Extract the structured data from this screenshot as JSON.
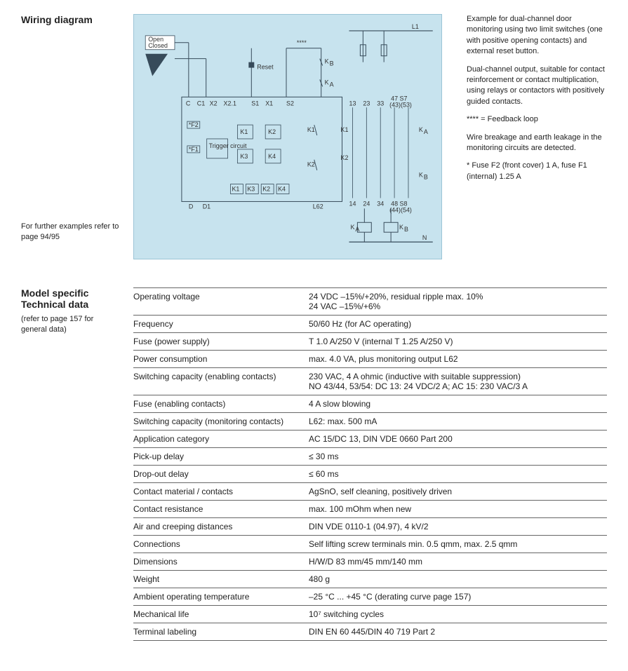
{
  "wiring": {
    "title": "Wiring diagram",
    "further_note": "For further examples refer to page 94/95",
    "diagram": {
      "bg_color": "#c7e3ee",
      "border_color": "#9bc4d6",
      "box_stroke": "#374b5a",
      "labels": {
        "open": "Open",
        "closed": "Closed",
        "reset": "Reset",
        "trigger": "Trigger circuit",
        "stars": "****",
        "L1": "L1",
        "N": "N",
        "KB": "K_B",
        "KA": "K_A",
        "terminals_top": [
          "C",
          "C1",
          "X2",
          "X2.1",
          "S1",
          "X1",
          "S2"
        ],
        "terminals_right_top": [
          "13",
          "23",
          "33",
          "47 S7",
          "(43)(53)"
        ],
        "terminals_bottom": [
          "D",
          "D1",
          "L62"
        ],
        "terminals_right_bot": [
          "14",
          "24",
          "34",
          "48 S8",
          "(44)(54)"
        ],
        "K1": "K1",
        "K2": "K2",
        "K3": "K3",
        "K4": "K4",
        "F1": "F1",
        "F2": "F2"
      }
    },
    "notes": [
      "Example for dual-channel door monitoring using two limit switches (one with positive opening contacts) and external reset button.",
      "Dual-channel output, suitable for contact reinforcement or contact multiplication, using relays or contactors with positively guided contacts.",
      "**** = Feedback loop",
      "Wire breakage and earth leakage in the monitoring circuits are detected.",
      "* Fuse F2 (front cover) 1 A, fuse F1 (internal) 1.25 A"
    ]
  },
  "tech": {
    "title": "Model specific Technical data",
    "subref": "(refer to page 157 for general data)",
    "rows": [
      {
        "label": "Operating voltage",
        "value": "24 VDC –15%/+20%, residual ripple max. 10%\n24 VAC –15%/+6%"
      },
      {
        "label": "Frequency",
        "value": "50/60 Hz (for AC operating)"
      },
      {
        "label": "Fuse (power supply)",
        "value": "T 1.0 A/250 V (internal T 1.25 A/250 V)"
      },
      {
        "label": "Power consumption",
        "value": "max. 4.0 VA, plus monitoring output L62"
      },
      {
        "label": "Switching capacity (enabling contacts)",
        "value": "230 VAC, 4 A ohmic (inductive with suitable suppression)\nNO 43/44, 53/54: DC 13: 24 VDC/2 A; AC 15: 230 VAC/3 A"
      },
      {
        "label": "Fuse (enabling contacts)",
        "value": "4 A slow blowing"
      },
      {
        "label": "Switching capacity (monitoring contacts)",
        "value": "L62: max. 500 mA"
      },
      {
        "label": "Application category",
        "value": "AC 15/DC 13, DIN VDE 0660 Part 200"
      },
      {
        "label": "Pick-up delay",
        "value": "≤ 30 ms"
      },
      {
        "label": "Drop-out delay",
        "value": "≤ 60 ms"
      },
      {
        "label": "Contact material / contacts",
        "value": "AgSnO, self cleaning, positively driven"
      },
      {
        "label": "Contact resistance",
        "value": "max. 100 mOhm when new"
      },
      {
        "label": "Air and creeping distances",
        "value": "DIN VDE 0110-1 (04.97), 4 kV/2"
      },
      {
        "label": "Connections",
        "value": "Self lifting screw terminals min. 0.5 qmm, max. 2.5 qmm"
      },
      {
        "label": "Dimensions",
        "value": "H/W/D 83 mm/45 mm/140 mm"
      },
      {
        "label": "Weight",
        "value": "480 g"
      },
      {
        "label": "Ambient operating temperature",
        "value": "–25 °C ... +45 °C (derating curve page 157)"
      },
      {
        "label": "Mechanical life",
        "value": "10⁷ switching cycles"
      },
      {
        "label": "Terminal labeling",
        "value": "DIN EN 60 445/DIN 40 719 Part 2"
      }
    ]
  }
}
